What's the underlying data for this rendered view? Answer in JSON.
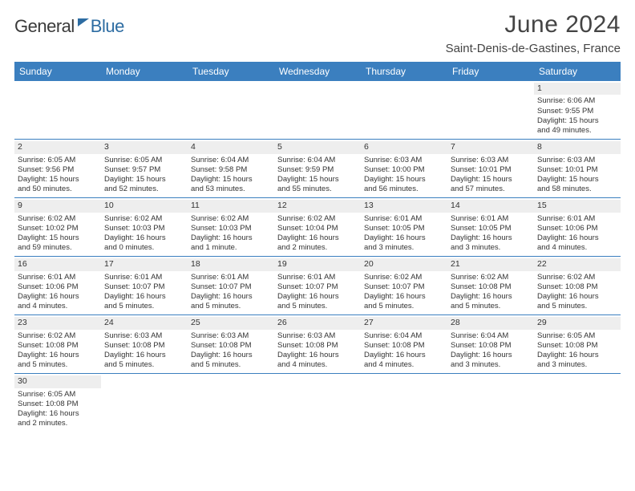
{
  "logo": {
    "part1": "General",
    "part2": "Blue"
  },
  "title": "June 2024",
  "subtitle": "Saint-Denis-de-Gastines, France",
  "colors": {
    "header_bg": "#3b7fbf",
    "header_text": "#ffffff",
    "daynum_bg": "#eeeeee",
    "rule": "#3b7fbf",
    "body_text": "#333333",
    "logo_blue": "#2d6ca2"
  },
  "weekdays": [
    "Sunday",
    "Monday",
    "Tuesday",
    "Wednesday",
    "Thursday",
    "Friday",
    "Saturday"
  ],
  "weeks": [
    [
      null,
      null,
      null,
      null,
      null,
      null,
      {
        "n": "1",
        "sr": "Sunrise: 6:06 AM",
        "ss": "Sunset: 9:55 PM",
        "d1": "Daylight: 15 hours",
        "d2": "and 49 minutes."
      }
    ],
    [
      {
        "n": "2",
        "sr": "Sunrise: 6:05 AM",
        "ss": "Sunset: 9:56 PM",
        "d1": "Daylight: 15 hours",
        "d2": "and 50 minutes."
      },
      {
        "n": "3",
        "sr": "Sunrise: 6:05 AM",
        "ss": "Sunset: 9:57 PM",
        "d1": "Daylight: 15 hours",
        "d2": "and 52 minutes."
      },
      {
        "n": "4",
        "sr": "Sunrise: 6:04 AM",
        "ss": "Sunset: 9:58 PM",
        "d1": "Daylight: 15 hours",
        "d2": "and 53 minutes."
      },
      {
        "n": "5",
        "sr": "Sunrise: 6:04 AM",
        "ss": "Sunset: 9:59 PM",
        "d1": "Daylight: 15 hours",
        "d2": "and 55 minutes."
      },
      {
        "n": "6",
        "sr": "Sunrise: 6:03 AM",
        "ss": "Sunset: 10:00 PM",
        "d1": "Daylight: 15 hours",
        "d2": "and 56 minutes."
      },
      {
        "n": "7",
        "sr": "Sunrise: 6:03 AM",
        "ss": "Sunset: 10:01 PM",
        "d1": "Daylight: 15 hours",
        "d2": "and 57 minutes."
      },
      {
        "n": "8",
        "sr": "Sunrise: 6:03 AM",
        "ss": "Sunset: 10:01 PM",
        "d1": "Daylight: 15 hours",
        "d2": "and 58 minutes."
      }
    ],
    [
      {
        "n": "9",
        "sr": "Sunrise: 6:02 AM",
        "ss": "Sunset: 10:02 PM",
        "d1": "Daylight: 15 hours",
        "d2": "and 59 minutes."
      },
      {
        "n": "10",
        "sr": "Sunrise: 6:02 AM",
        "ss": "Sunset: 10:03 PM",
        "d1": "Daylight: 16 hours",
        "d2": "and 0 minutes."
      },
      {
        "n": "11",
        "sr": "Sunrise: 6:02 AM",
        "ss": "Sunset: 10:03 PM",
        "d1": "Daylight: 16 hours",
        "d2": "and 1 minute."
      },
      {
        "n": "12",
        "sr": "Sunrise: 6:02 AM",
        "ss": "Sunset: 10:04 PM",
        "d1": "Daylight: 16 hours",
        "d2": "and 2 minutes."
      },
      {
        "n": "13",
        "sr": "Sunrise: 6:01 AM",
        "ss": "Sunset: 10:05 PM",
        "d1": "Daylight: 16 hours",
        "d2": "and 3 minutes."
      },
      {
        "n": "14",
        "sr": "Sunrise: 6:01 AM",
        "ss": "Sunset: 10:05 PM",
        "d1": "Daylight: 16 hours",
        "d2": "and 3 minutes."
      },
      {
        "n": "15",
        "sr": "Sunrise: 6:01 AM",
        "ss": "Sunset: 10:06 PM",
        "d1": "Daylight: 16 hours",
        "d2": "and 4 minutes."
      }
    ],
    [
      {
        "n": "16",
        "sr": "Sunrise: 6:01 AM",
        "ss": "Sunset: 10:06 PM",
        "d1": "Daylight: 16 hours",
        "d2": "and 4 minutes."
      },
      {
        "n": "17",
        "sr": "Sunrise: 6:01 AM",
        "ss": "Sunset: 10:07 PM",
        "d1": "Daylight: 16 hours",
        "d2": "and 5 minutes."
      },
      {
        "n": "18",
        "sr": "Sunrise: 6:01 AM",
        "ss": "Sunset: 10:07 PM",
        "d1": "Daylight: 16 hours",
        "d2": "and 5 minutes."
      },
      {
        "n": "19",
        "sr": "Sunrise: 6:01 AM",
        "ss": "Sunset: 10:07 PM",
        "d1": "Daylight: 16 hours",
        "d2": "and 5 minutes."
      },
      {
        "n": "20",
        "sr": "Sunrise: 6:02 AM",
        "ss": "Sunset: 10:07 PM",
        "d1": "Daylight: 16 hours",
        "d2": "and 5 minutes."
      },
      {
        "n": "21",
        "sr": "Sunrise: 6:02 AM",
        "ss": "Sunset: 10:08 PM",
        "d1": "Daylight: 16 hours",
        "d2": "and 5 minutes."
      },
      {
        "n": "22",
        "sr": "Sunrise: 6:02 AM",
        "ss": "Sunset: 10:08 PM",
        "d1": "Daylight: 16 hours",
        "d2": "and 5 minutes."
      }
    ],
    [
      {
        "n": "23",
        "sr": "Sunrise: 6:02 AM",
        "ss": "Sunset: 10:08 PM",
        "d1": "Daylight: 16 hours",
        "d2": "and 5 minutes."
      },
      {
        "n": "24",
        "sr": "Sunrise: 6:03 AM",
        "ss": "Sunset: 10:08 PM",
        "d1": "Daylight: 16 hours",
        "d2": "and 5 minutes."
      },
      {
        "n": "25",
        "sr": "Sunrise: 6:03 AM",
        "ss": "Sunset: 10:08 PM",
        "d1": "Daylight: 16 hours",
        "d2": "and 5 minutes."
      },
      {
        "n": "26",
        "sr": "Sunrise: 6:03 AM",
        "ss": "Sunset: 10:08 PM",
        "d1": "Daylight: 16 hours",
        "d2": "and 4 minutes."
      },
      {
        "n": "27",
        "sr": "Sunrise: 6:04 AM",
        "ss": "Sunset: 10:08 PM",
        "d1": "Daylight: 16 hours",
        "d2": "and 4 minutes."
      },
      {
        "n": "28",
        "sr": "Sunrise: 6:04 AM",
        "ss": "Sunset: 10:08 PM",
        "d1": "Daylight: 16 hours",
        "d2": "and 3 minutes."
      },
      {
        "n": "29",
        "sr": "Sunrise: 6:05 AM",
        "ss": "Sunset: 10:08 PM",
        "d1": "Daylight: 16 hours",
        "d2": "and 3 minutes."
      }
    ],
    [
      {
        "n": "30",
        "sr": "Sunrise: 6:05 AM",
        "ss": "Sunset: 10:08 PM",
        "d1": "Daylight: 16 hours",
        "d2": "and 2 minutes."
      },
      null,
      null,
      null,
      null,
      null,
      null
    ]
  ]
}
